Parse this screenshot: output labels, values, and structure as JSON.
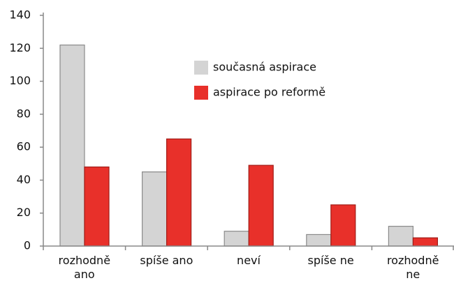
{
  "chart_data": {
    "type": "bar",
    "categories": [
      "rozhodně ano",
      "spíše ano",
      "neví",
      "spíše ne",
      "rozhodně ne"
    ],
    "series": [
      {
        "name": "současná aspirace",
        "color": "#d4d4d4",
        "values": [
          122,
          45,
          9,
          7,
          12
        ]
      },
      {
        "name": "aspirace po reformě",
        "color": "#e8302a",
        "values": [
          48,
          65,
          49,
          25,
          5
        ]
      }
    ],
    "ylim": [
      0,
      140
    ],
    "yticks": [
      0,
      20,
      40,
      60,
      80,
      100,
      120,
      140
    ],
    "grid": false
  }
}
